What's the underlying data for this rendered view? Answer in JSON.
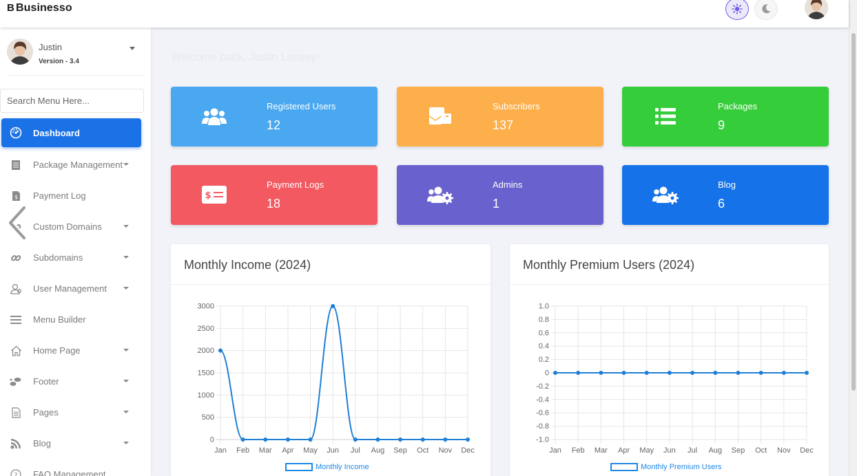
{
  "brand": {
    "letter": "B",
    "name": "Businesso"
  },
  "sidebar": {
    "user": {
      "name": "Justin",
      "version": "Version - 3.4"
    },
    "search_placeholder": "Search Menu Here...",
    "items": [
      {
        "label": "Dashboard",
        "icon": "dashboard-icon",
        "active": true,
        "has_caret": false
      },
      {
        "label": "Package Management",
        "icon": "file-icon",
        "has_caret": true
      },
      {
        "label": "Payment Log",
        "icon": "invoice-icon",
        "has_caret": false
      },
      {
        "label": "Custom Domains",
        "icon": "link-icon",
        "has_caret": true
      },
      {
        "label": "Subdomains",
        "icon": "link-icon",
        "has_caret": true
      },
      {
        "label": "User Management",
        "icon": "users-icon",
        "has_caret": true
      },
      {
        "label": "Menu Builder",
        "icon": "bars-icon",
        "has_caret": false
      },
      {
        "label": "Home Page",
        "icon": "home-icon",
        "has_caret": true
      },
      {
        "label": "Footer",
        "icon": "footer-icon",
        "has_caret": true
      },
      {
        "label": "Pages",
        "icon": "page-icon",
        "has_caret": true
      },
      {
        "label": "Blog",
        "icon": "blog-icon",
        "has_caret": true
      },
      {
        "label": "FAQ Management",
        "icon": "question-icon",
        "has_caret": false
      }
    ]
  },
  "welcome": "Welcome back, Justin Lansey!",
  "stats": [
    {
      "label": "Registered Users",
      "value": "12",
      "color": "#4aa8f0",
      "icon": "users-icon"
    },
    {
      "label": "Subscribers",
      "value": "137",
      "color": "#fdaf4b",
      "icon": "mail-icon"
    },
    {
      "label": "Packages",
      "value": "9",
      "color": "#35cd3a",
      "icon": "list-icon"
    },
    {
      "label": "Payment Logs",
      "value": "18",
      "color": "#f25961",
      "icon": "money-icon"
    },
    {
      "label": "Admins",
      "value": "1",
      "color": "#6861ce",
      "icon": "users-cog-icon"
    },
    {
      "label": "Blog",
      "value": "6",
      "color": "#1572e8",
      "icon": "users-cog-icon"
    }
  ],
  "chart_data": [
    {
      "type": "line",
      "title": "Monthly Income (2024)",
      "categories": [
        "Jan",
        "Feb",
        "Mar",
        "Apr",
        "May",
        "Jun",
        "Jul",
        "Aug",
        "Sep",
        "Oct",
        "Nov",
        "Dec"
      ],
      "series": [
        {
          "name": "Monthly Income",
          "values": [
            2000,
            0,
            0,
            0,
            0,
            3000,
            0,
            0,
            0,
            0,
            0,
            0
          ]
        }
      ],
      "ylim": [
        0,
        3000
      ],
      "yticks": [
        "3000",
        "2500",
        "2000",
        "1500",
        "1000",
        "500",
        "0"
      ],
      "grid": true,
      "legend": "bottom"
    },
    {
      "type": "line",
      "title": "Monthly Premium Users (2024)",
      "categories": [
        "Jan",
        "Feb",
        "Mar",
        "Apr",
        "May",
        "Jun",
        "Jul",
        "Aug",
        "Sep",
        "Oct",
        "Nov",
        "Dec"
      ],
      "series": [
        {
          "name": "Monthly Premium Users",
          "values": [
            0,
            0,
            0,
            0,
            0,
            0,
            0,
            0,
            0,
            0,
            0,
            0
          ]
        }
      ],
      "ylim": [
        -1.0,
        1.0
      ],
      "yticks": [
        "1.0",
        "0.8",
        "0.6",
        "0.4",
        "0.2",
        "0",
        "-0.2",
        "-0.4",
        "-0.6",
        "-0.8",
        "-1.0"
      ],
      "grid": true,
      "legend": "bottom"
    }
  ]
}
